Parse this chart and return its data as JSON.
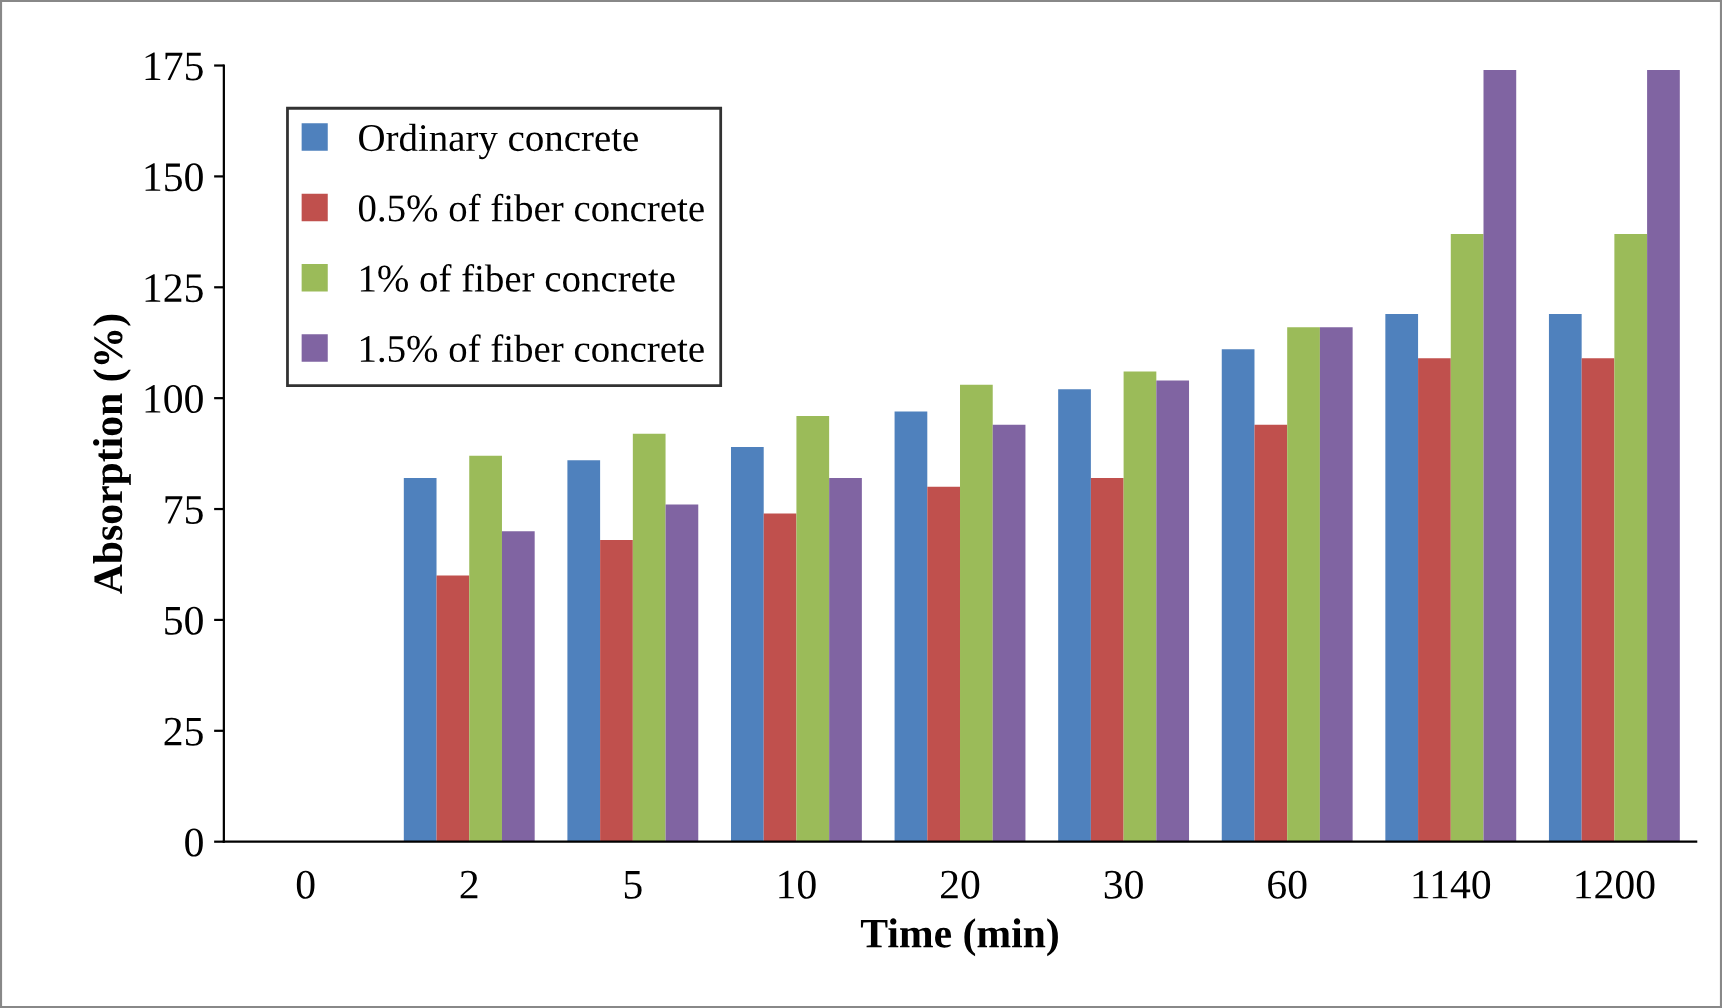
{
  "chart_data": {
    "type": "bar",
    "xlabel": "Time (min)",
    "ylabel": "Absorption (%)",
    "categories": [
      "0",
      "2",
      "5",
      "10",
      "20",
      "30",
      "60",
      "1140",
      "1200"
    ],
    "series": [
      {
        "name": "Ordinary concrete",
        "color": "#4f81bd",
        "values": [
          0,
          82,
          86,
          89,
          97,
          102,
          111,
          119,
          119
        ]
      },
      {
        "name": "0.5% of fiber concrete",
        "color": "#c0504d",
        "values": [
          0,
          60,
          68,
          74,
          80,
          82,
          94,
          109,
          109
        ]
      },
      {
        "name": "1% of fiber concrete",
        "color": "#9bbb59",
        "values": [
          0,
          87,
          92,
          96,
          103,
          106,
          116,
          137,
          137
        ]
      },
      {
        "name": "1.5% of fiber concrete",
        "color": "#8064a2",
        "values": [
          0,
          70,
          76,
          82,
          94,
          104,
          116,
          174,
          174
        ]
      }
    ],
    "ylim": [
      0,
      175
    ],
    "yticks": [
      0,
      25,
      50,
      75,
      100,
      125,
      150,
      175
    ],
    "grid": false,
    "legend": "top left"
  }
}
